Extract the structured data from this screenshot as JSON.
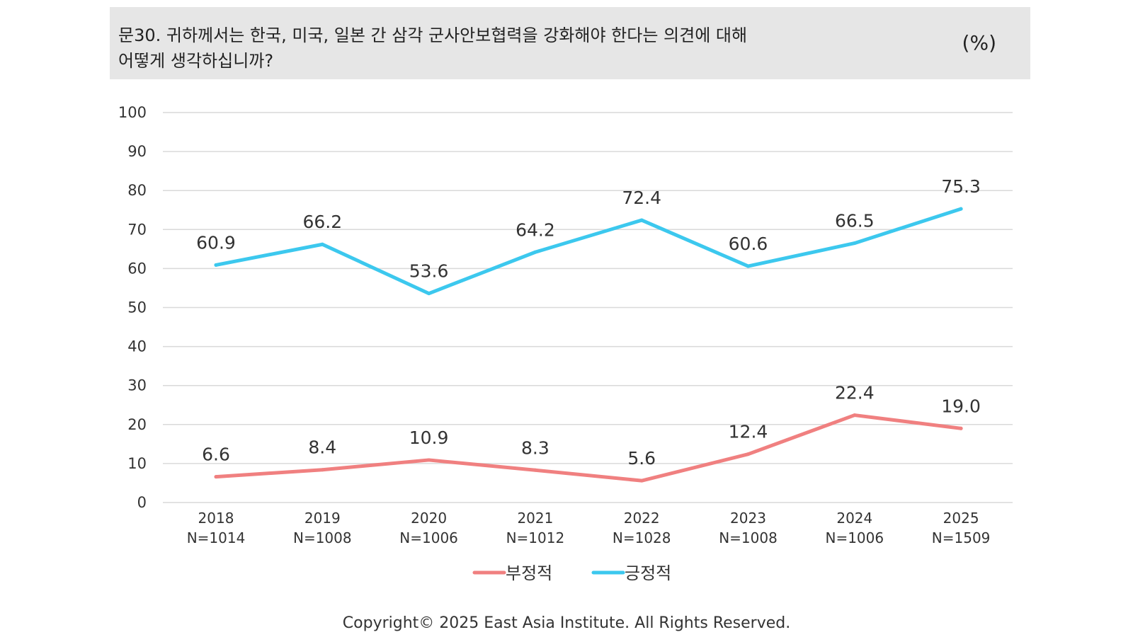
{
  "header": {
    "title_line1": "문30. 귀하께서는 한국, 미국, 일본 간 삼각 군사안보협력을 강화해야 한다는 의견에 대해",
    "title_line2": "어떻게 생각하십니까?",
    "unit": "(%)"
  },
  "chart_data": {
    "type": "line",
    "title": "문30. 귀하께서는 한국, 미국, 일본 간 삼각 군사안보협력을 강화해야 한다는 의견에 대해 어떻게 생각하십니까?",
    "unit": "(%)",
    "categories": [
      "2018",
      "2019",
      "2020",
      "2021",
      "2022",
      "2023",
      "2024",
      "2025"
    ],
    "sample_sizes": [
      "N=1014",
      "N=1008",
      "N=1006",
      "N=1012",
      "N=1028",
      "N=1008",
      "N=1006",
      "N=1509"
    ],
    "ylim": [
      0,
      100
    ],
    "yticks": [
      0,
      10,
      20,
      30,
      40,
      50,
      60,
      70,
      80,
      90,
      100
    ],
    "grid": true,
    "legend_position": "bottom",
    "series": [
      {
        "name": "부정적",
        "color": "#f08080",
        "values": [
          6.6,
          8.4,
          10.9,
          8.3,
          5.6,
          12.4,
          22.4,
          19.0
        ],
        "labels": [
          "6.6",
          "8.4",
          "10.9",
          "8.3",
          "5.6",
          "12.4",
          "22.4",
          "19.0"
        ]
      },
      {
        "name": "긍정적",
        "color": "#3cc8ee",
        "values": [
          60.9,
          66.2,
          53.6,
          64.2,
          72.4,
          60.6,
          66.5,
          75.3
        ],
        "labels": [
          "60.9",
          "66.2",
          "53.6",
          "64.2",
          "72.4",
          "60.6",
          "66.5",
          "75.3"
        ]
      }
    ]
  },
  "footer": {
    "copyright": "Copyright© 2025 East Asia Institute. All Rights Reserved."
  }
}
